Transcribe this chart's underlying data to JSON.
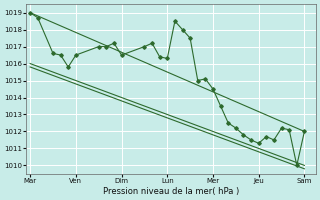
{
  "xlabel": "Pression niveau de la mer( hPa )",
  "bg_color": "#c8ece8",
  "grid_color": "#ffffff",
  "line_color": "#2d6a2d",
  "ylim": [
    1009.5,
    1019.5
  ],
  "yticks": [
    1010,
    1011,
    1012,
    1013,
    1014,
    1015,
    1016,
    1017,
    1018,
    1019
  ],
  "x_day_labels": [
    "Mar",
    "Ven",
    "Dim",
    "Lun",
    "Mer",
    "Jeu",
    "Sam"
  ],
  "x_day_positions": [
    0,
    6,
    12,
    18,
    24,
    30,
    36
  ],
  "xlim": [
    -0.5,
    37.5
  ],
  "series1_x": [
    0,
    1,
    3,
    4,
    5,
    6,
    9,
    10,
    11,
    12,
    15,
    16,
    17,
    18,
    19,
    20,
    21,
    22,
    23,
    24,
    25,
    26,
    27,
    28,
    29,
    30,
    31,
    32,
    33,
    34,
    35,
    36
  ],
  "series1_y": [
    1019.0,
    1018.7,
    1016.6,
    1016.5,
    1015.8,
    1016.5,
    1017.0,
    1017.0,
    1017.2,
    1016.5,
    1017.0,
    1017.2,
    1016.4,
    1016.3,
    1018.5,
    1018.0,
    1017.5,
    1015.0,
    1015.1,
    1014.5,
    1013.5,
    1012.5,
    1012.2,
    1011.8,
    1011.5,
    1011.3,
    1011.7,
    1011.5,
    1012.2,
    1012.1,
    1010.0,
    1012.0
  ],
  "series2_x": [
    0,
    36
  ],
  "series2_y": [
    1019.0,
    1012.0
  ],
  "series3_x": [
    0,
    36
  ],
  "series3_y": [
    1016.0,
    1010.0
  ],
  "series4_x": [
    0,
    36
  ],
  "series4_y": [
    1015.8,
    1009.8
  ]
}
